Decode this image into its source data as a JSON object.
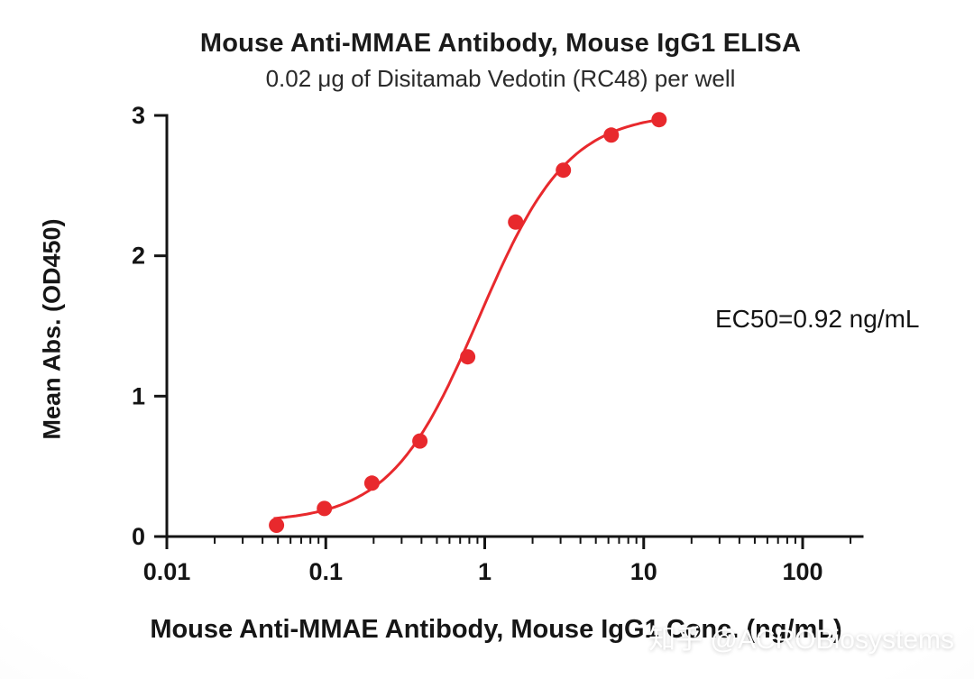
{
  "chart_data": {
    "type": "scatter",
    "title": "Mouse Anti-MMAE Antibody, Mouse IgG1 ELISA",
    "subtitle": "0.02 μg of Disitamab Vedotin (RC48) per well",
    "xlabel": "Mouse Anti-MMAE Antibody, Mouse IgG1 Conc. (ng/mL)",
    "ylabel": "Mean Abs. (OD450)",
    "annotation": "EC50=0.92 ng/mL",
    "xscale": "log",
    "xlim": [
      0.01,
      100
    ],
    "ylim": [
      0,
      3
    ],
    "x_ticks": [
      0.01,
      0.1,
      1,
      10,
      100
    ],
    "x_tick_labels": [
      "0.01",
      "0.1",
      "1",
      "10",
      "100"
    ],
    "y_ticks": [
      0,
      1,
      2,
      3
    ],
    "grid": false,
    "axis_color": "#141414",
    "series": [
      {
        "name": "Mouse Anti-MMAE Antibody",
        "color": "#e8292d",
        "x": [
          0.049,
          0.098,
          0.195,
          0.391,
          0.781,
          1.563,
          3.125,
          6.25,
          12.5
        ],
        "y": [
          0.08,
          0.2,
          0.38,
          0.68,
          1.28,
          2.24,
          2.61,
          2.86,
          2.97
        ]
      }
    ],
    "fit": {
      "model": "4PL",
      "bottom": 0.1,
      "top": 3.02,
      "ec50": 0.92,
      "hill": 1.55,
      "x_min": 0.047,
      "x_max": 13.2
    }
  },
  "watermark": {
    "text": "知乎 @ACROBiosystems"
  }
}
